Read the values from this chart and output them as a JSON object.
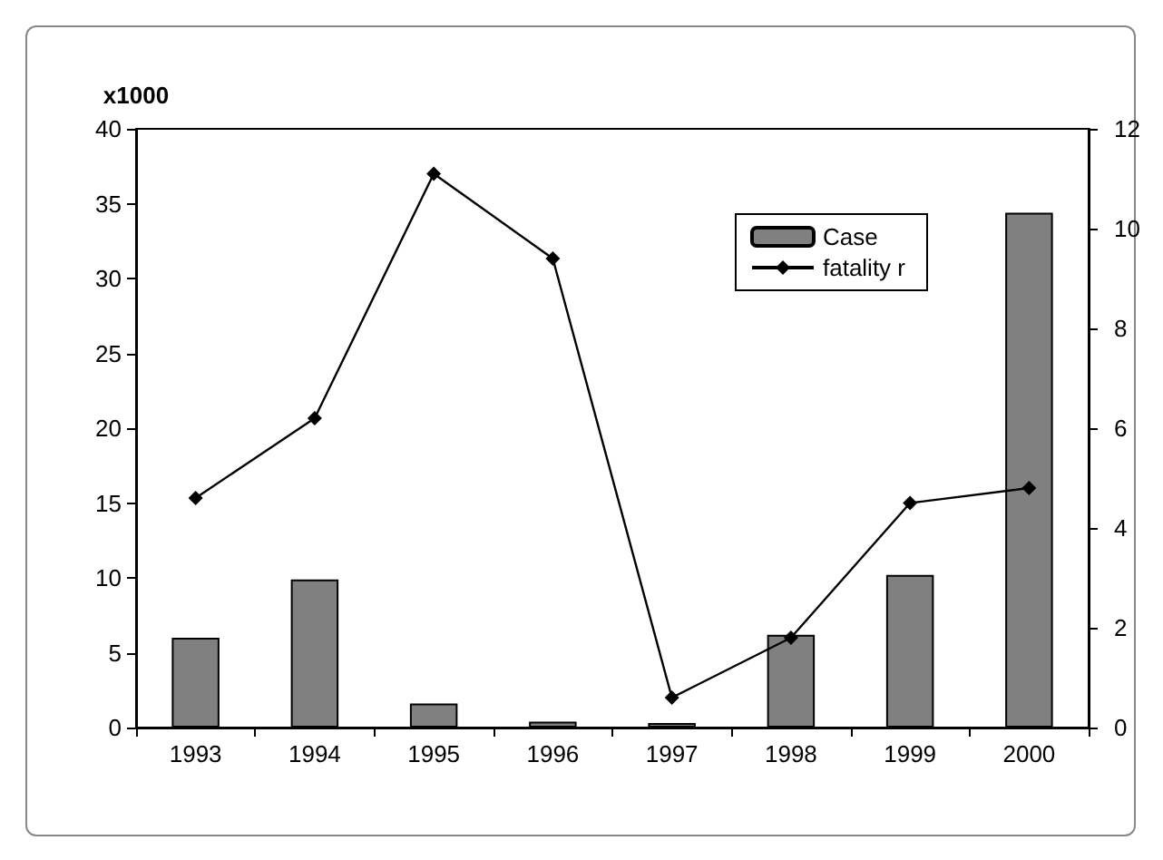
{
  "chart_data": {
    "type": "bar",
    "ylabel": "x1000",
    "categories": [
      "1993",
      "1994",
      "1995",
      "1996",
      "1997",
      "1998",
      "1999",
      "2000"
    ],
    "series": [
      {
        "name": "Case",
        "color": "#808080",
        "values": [
          6.0,
          9.9,
          1.6,
          0.4,
          0.3,
          6.2,
          10.2,
          34.4
        ]
      },
      {
        "name": "fatality r",
        "type": "line",
        "axis": "y2",
        "color": "#000000",
        "marker": "diamond",
        "values": [
          4.6,
          6.2,
          11.1,
          9.4,
          0.6,
          1.8,
          4.5,
          4.8
        ]
      }
    ],
    "ylim": [
      0,
      40
    ],
    "yticks": [
      0,
      5,
      10,
      15,
      20,
      25,
      30,
      35,
      40
    ],
    "y2lim": [
      0,
      12
    ],
    "y2ticks": [
      0,
      2,
      4,
      6,
      8,
      10,
      12
    ],
    "grid": false,
    "legend": "top right"
  }
}
